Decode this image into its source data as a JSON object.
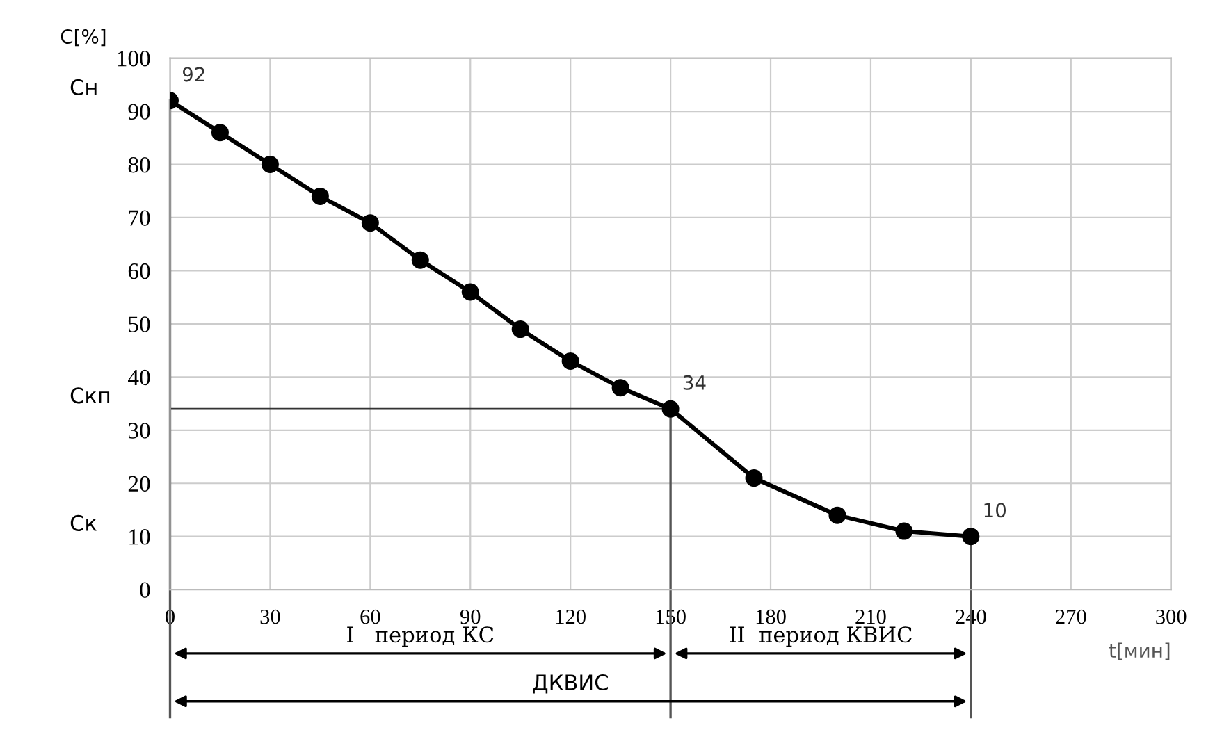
{
  "chart_data": {
    "type": "line",
    "xlabel": "t[мин]",
    "ylabel": "C[%]",
    "x": [
      0,
      15,
      30,
      45,
      60,
      75,
      90,
      105,
      120,
      135,
      150,
      175,
      200,
      220,
      240
    ],
    "series": [
      {
        "color": "#000000",
        "values": [
          92,
          86,
          80,
          74,
          69,
          62,
          56,
          49,
          43,
          38,
          34,
          21,
          14,
          11,
          10
        ],
        "value_labels": [
          "92",
          null,
          null,
          null,
          null,
          null,
          null,
          null,
          null,
          null,
          "34",
          null,
          null,
          null,
          "10"
        ]
      }
    ],
    "xlim": [
      0,
      300
    ],
    "xticks": [
      0,
      30,
      60,
      90,
      120,
      150,
      180,
      210,
      240,
      270,
      300
    ],
    "ylim": [
      0,
      100
    ],
    "yticks": [
      0,
      10,
      20,
      30,
      40,
      50,
      60,
      70,
      80,
      90,
      100
    ],
    "grid": true,
    "marker": "circle",
    "line_style": "solid",
    "ref_lines": [
      {
        "axis": "y",
        "value": 34,
        "label": "Скп"
      },
      {
        "axis": "x",
        "value": 150
      },
      {
        "axis": "x",
        "value": 240
      }
    ],
    "annotations": [
      "Сн",
      "Ск",
      "I   период КС",
      "II  период КВИС",
      "ДКВИС"
    ]
  }
}
